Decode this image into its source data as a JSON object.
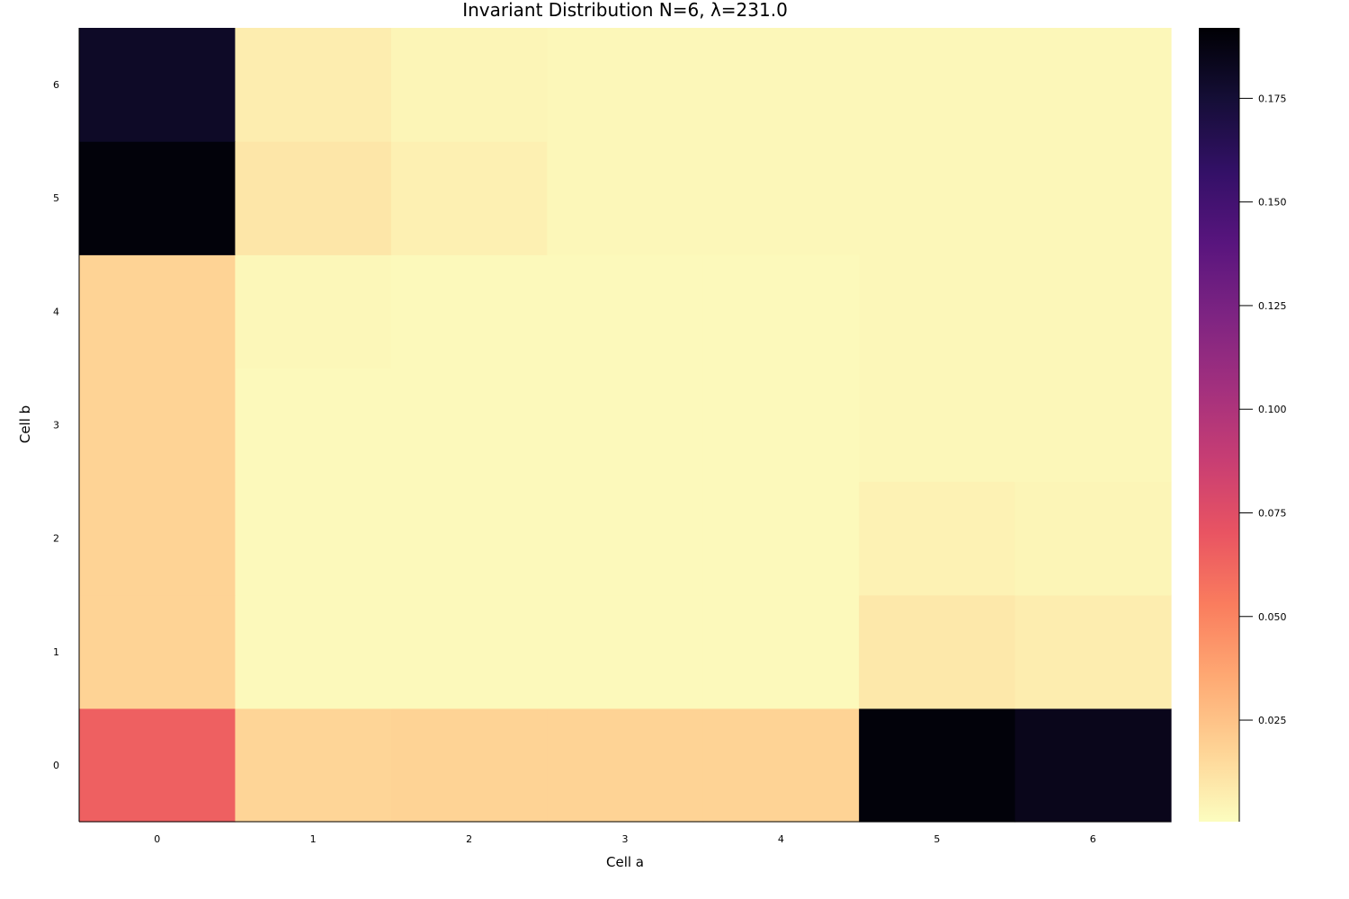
{
  "chart_data": {
    "type": "heatmap",
    "title": "Invariant Distribution N=6, λ=231.0",
    "xlabel": "Cell a",
    "ylabel": "Cell b",
    "x_categories": [
      "0",
      "1",
      "2",
      "3",
      "4",
      "5",
      "6"
    ],
    "y_categories": [
      "0",
      "1",
      "2",
      "3",
      "4",
      "5",
      "6"
    ],
    "values_row_by_y": [
      [
        0.065,
        0.017,
        0.018,
        0.018,
        0.018,
        0.19,
        0.184
      ],
      [
        0.018,
        0.002,
        0.002,
        0.002,
        0.002,
        0.009,
        0.007
      ],
      [
        0.018,
        0.002,
        0.002,
        0.002,
        0.002,
        0.005,
        0.004
      ],
      [
        0.018,
        0.002,
        0.002,
        0.002,
        0.002,
        0.003,
        0.003
      ],
      [
        0.018,
        0.003,
        0.002,
        0.002,
        0.002,
        0.003,
        0.003
      ],
      [
        0.19,
        0.01,
        0.006,
        0.003,
        0.003,
        0.003,
        0.003
      ],
      [
        0.18,
        0.007,
        0.004,
        0.003,
        0.003,
        0.003,
        0.003
      ]
    ],
    "colorbar": {
      "colormap": "magma (reversed)",
      "range": [
        0.0005,
        0.192
      ],
      "ticks": [
        0.025,
        0.05,
        0.075,
        0.1,
        0.125,
        0.15,
        0.175
      ],
      "tick_labels": [
        "0.025",
        "0.050",
        "0.075",
        "0.100",
        "0.125",
        "0.150",
        "0.175"
      ]
    },
    "grid": false,
    "colormap_stops": [
      "#fcfdbf",
      "#fed395",
      "#fea973",
      "#fa7d5e",
      "#e95462",
      "#c83e73",
      "#a3307e",
      "#7e2482",
      "#59157e",
      "#331067",
      "#150e37",
      "#000004"
    ]
  }
}
